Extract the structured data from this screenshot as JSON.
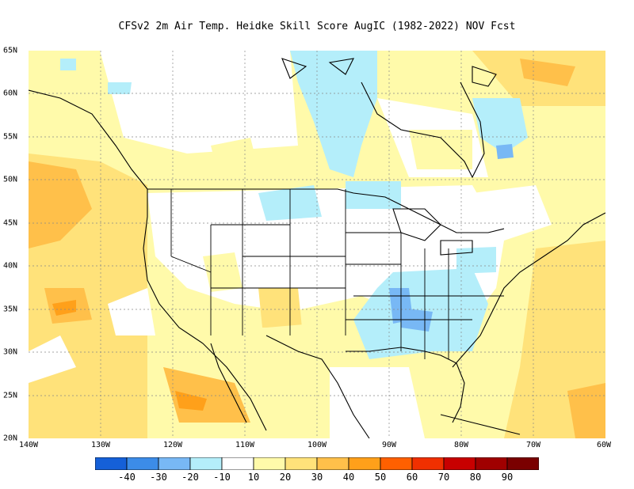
{
  "title": "CFSv2  2m Air Temp. Heidke Skill Score AugIC (1982-2022) NOV Fcst",
  "x_ticks": [
    "140W",
    "130W",
    "120W",
    "110W",
    "100W",
    "90W",
    "80W",
    "70W",
    "60W"
  ],
  "y_ticks": [
    "65N",
    "60N",
    "55N",
    "50N",
    "45N",
    "40N",
    "35N",
    "30N",
    "25N",
    "20N"
  ],
  "legend": {
    "colors": [
      "#1560d8",
      "#3c8ce8",
      "#78b8f5",
      "#b4eefa",
      "#ffffff",
      "#fffaaa",
      "#ffe27a",
      "#ffc04a",
      "#ffa01a",
      "#ff6000",
      "#f03000",
      "#c80000",
      "#a00000",
      "#7a0000"
    ],
    "labels": [
      "-40",
      "-30",
      "-20",
      "-10",
      "10",
      "20",
      "30",
      "40",
      "50",
      "60",
      "70",
      "80",
      "90"
    ]
  },
  "map_colors": {
    "land_neutral": "#ffffff",
    "warm_light": "#fffaaa",
    "warm": "#ffe27a",
    "warm_strong": "#ffc04a",
    "warm_stronger": "#ffa01a",
    "cool_light": "#b4eefa",
    "cool": "#78b8f5",
    "cool_strong": "#3c8ce8"
  }
}
